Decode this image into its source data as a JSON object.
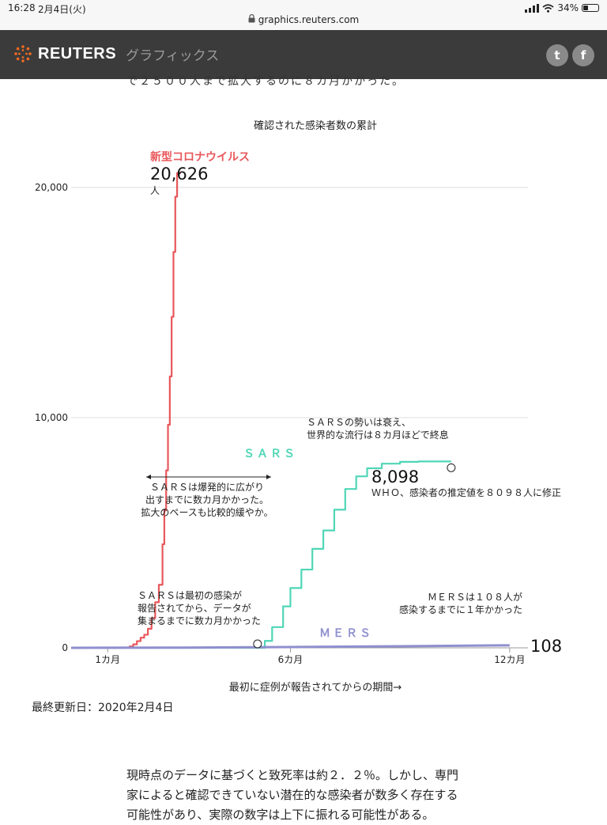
{
  "status": {
    "time": "16:28",
    "date": "2月4日(火)",
    "battery": "34%",
    "battery_level": 0.34
  },
  "browser": {
    "url": "graphics.reuters.com"
  },
  "header": {
    "brand": "REUTERS",
    "section": "グラフィックス",
    "twitter_glyph": "t",
    "facebook_glyph": "f"
  },
  "intro_cut": "で２５００人まで拡大するのに８カ月かかった。",
  "chart_data": {
    "type": "line",
    "title": "確認された感染者数の累計",
    "xlabel": "最初に症例が報告されてからの期間→",
    "ylabel": "",
    "x_unit": "months",
    "xlim": [
      0,
      12.5
    ],
    "ylim": [
      0,
      20000
    ],
    "y_ticks": [
      {
        "value": 0,
        "label": "0"
      },
      {
        "value": 10000,
        "label": "10,000"
      },
      {
        "value": 20000,
        "label": "20,000"
      }
    ],
    "x_ticks": [
      {
        "value": 1,
        "label": "1カ月"
      },
      {
        "value": 6,
        "label": "6カ月"
      },
      {
        "value": 12,
        "label": "12カ月"
      }
    ],
    "grid": true,
    "legend": "none",
    "series": [
      {
        "name": "新型コロナウイルス",
        "color": "#e8575a",
        "x": [
          0,
          1.0,
          1.4,
          1.6,
          1.7,
          1.8,
          1.9,
          2.0,
          2.1,
          2.2,
          2.3,
          2.4,
          2.5,
          2.55,
          2.6,
          2.65,
          2.7,
          2.75,
          2.8,
          2.85,
          2.9,
          2.95,
          3.0
        ],
        "y": [
          0,
          0,
          10,
          60,
          150,
          290,
          440,
          570,
          830,
          1290,
          1980,
          2740,
          4500,
          5970,
          7710,
          9690,
          11790,
          14380,
          17200,
          19600,
          20626,
          20626,
          20626
        ]
      },
      {
        "name": "SARS",
        "color": "#4fd6b6",
        "x": [
          0,
          5.1,
          5.3,
          5.5,
          5.8,
          6.0,
          6.3,
          6.6,
          6.9,
          7.2,
          7.5,
          7.8,
          8.1,
          8.5,
          9.0,
          9.5,
          10.0,
          10.4
        ],
        "y": [
          0,
          0,
          300,
          900,
          1800,
          2600,
          3400,
          4300,
          5100,
          6000,
          6900,
          7450,
          7800,
          8000,
          8080,
          8096,
          8098,
          8098
        ]
      },
      {
        "name": "MERS",
        "color": "#8f8fcf",
        "x": [
          0,
          3.0,
          6.0,
          9.0,
          12.0
        ],
        "y": [
          0,
          10,
          35,
          70,
          108
        ]
      }
    ],
    "annotations": [
      {
        "id": "covid_total",
        "value": "20,626",
        "unit": "人"
      },
      {
        "id": "sars_total",
        "value": "8,098",
        "note": "ＷＨＯ、感染者の推定値を８０９８人に修正"
      },
      {
        "id": "mers_total",
        "value": "108"
      },
      {
        "id": "sars_peak",
        "lines": [
          "ＳＡＲＳの勢いは衰え、",
          "世界的な流行は８カ月ほどで終息"
        ]
      },
      {
        "id": "sars_spread",
        "lines": [
          "ＳＡＲＳは爆発的に広がり",
          "出すまでに数カ月かかった。",
          "拡大のペースも比較的緩やか。"
        ]
      },
      {
        "id": "sars_start",
        "lines": [
          "ＳＡＲＳは最初の感染が",
          "報告されてから、データが",
          "集まるまでに数カ月かかった"
        ]
      },
      {
        "id": "mers_note",
        "lines": [
          "ＭＥＲＳは１０８人が",
          "感染するまでに１年かかった"
        ]
      }
    ],
    "series_labels": {
      "covid": "新型コロナウイルス",
      "sars": "ＳＡＲＳ",
      "mers": "ＭＥＲＳ"
    }
  },
  "footer": {
    "updated": "最終更新日：2020年2月4日"
  },
  "article": {
    "lines": [
      "現時点のデータに基づくと致死率は約２．２％。しかし、専門",
      "家によると確認できていない潜在的な感染者が数多く存在する",
      "可能性があり、実際の数字は上下に振れる可能性がある。"
    ]
  }
}
